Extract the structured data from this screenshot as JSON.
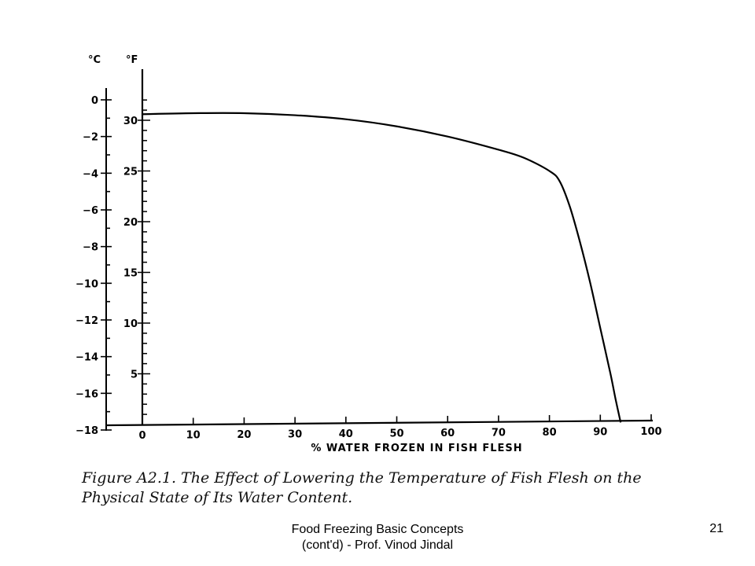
{
  "chart_data": {
    "type": "line",
    "xlabel": "% WATER FROZEN IN FISH FLESH",
    "x_ticks": [
      "0",
      "10",
      "20",
      "30",
      "40",
      "50",
      "60",
      "70",
      "80",
      "90",
      "100"
    ],
    "xlim": [
      0,
      100
    ],
    "y_left": {
      "unit": "°C",
      "ticks": [
        "0",
        "−2",
        "−4",
        "−6",
        "−8",
        "−10",
        "−12",
        "−14",
        "−16",
        "−18"
      ],
      "ylim": [
        -18,
        0
      ]
    },
    "y_right": {
      "unit": "°F",
      "ticks": [
        "5",
        "10",
        "15",
        "20",
        "25",
        "30"
      ],
      "ylim": [
        0,
        32
      ]
    },
    "grid": false,
    "series": [
      {
        "x": [
          0,
          10,
          20,
          30,
          40,
          50,
          60,
          70,
          75,
          80,
          82,
          84,
          86,
          88,
          90,
          92,
          93,
          94
        ],
        "y": [
          30.6,
          30.7,
          30.7,
          30.5,
          30.1,
          29.4,
          28.4,
          27.1,
          26.3,
          25.0,
          24.0,
          21.5,
          18.0,
          14.0,
          9.5,
          5.0,
          2.5,
          0.2
        ]
      }
    ]
  },
  "caption": "Figure A2.1. The Effect of Lowering the Temperature of Fish Flesh on the Physical State of Its Water Content.",
  "footer": {
    "line1": "Food Freezing Basic Concepts",
    "line2": "(cont'd) - Prof. Vinod Jindal",
    "page_number": "21"
  }
}
